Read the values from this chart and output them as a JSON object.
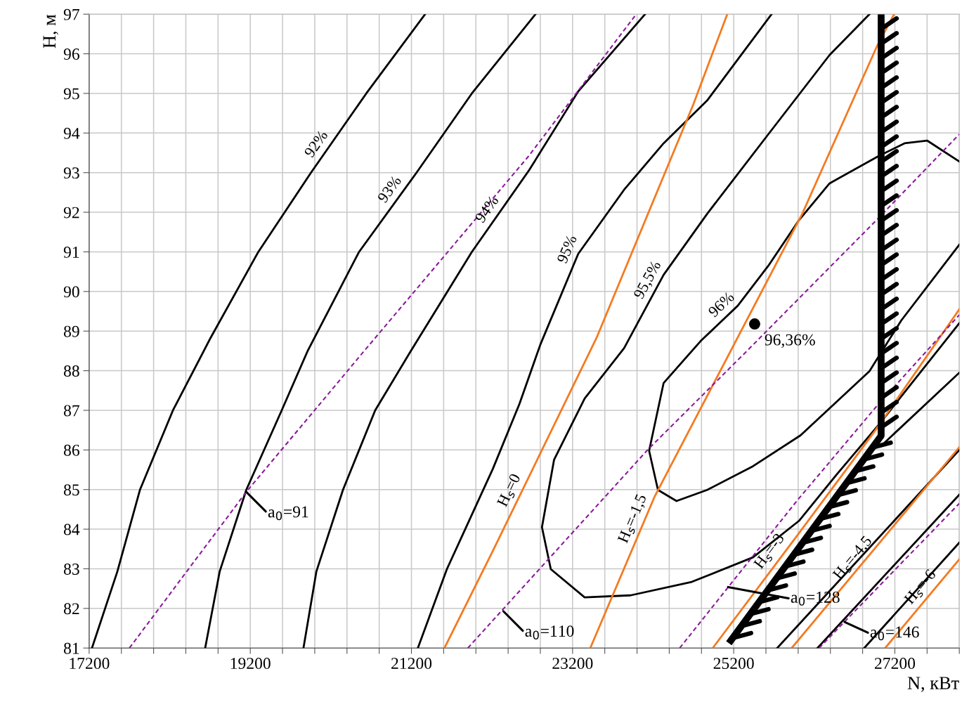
{
  "chart_data": {
    "type": "line",
    "xlabel": "N, кВт",
    "ylabel": "Н, м",
    "xlim": [
      17200,
      28000
    ],
    "ylim": [
      81,
      97
    ],
    "xticks": [
      17200,
      {
        "value": 17600,
        "label": null
      },
      {
        "value": 18000,
        "label": null
      },
      {
        "value": 18400,
        "label": null
      },
      {
        "value": 18800,
        "label": null
      },
      19200,
      {
        "value": 19600,
        "label": null
      },
      {
        "value": 20000,
        "label": null
      },
      {
        "value": 20400,
        "label": null
      },
      {
        "value": 20800,
        "label": null
      },
      21200,
      {
        "value": 21600,
        "label": null
      },
      {
        "value": 22000,
        "label": null
      },
      {
        "value": 22400,
        "label": null
      },
      {
        "value": 22800,
        "label": null
      },
      23200,
      {
        "value": 23600,
        "label": null
      },
      {
        "value": 24000,
        "label": null
      },
      {
        "value": 24400,
        "label": null
      },
      {
        "value": 24800,
        "label": null
      },
      25200,
      {
        "value": 25600,
        "label": null
      },
      {
        "value": 26000,
        "label": null
      },
      {
        "value": 26400,
        "label": null
      },
      {
        "value": 26800,
        "label": null
      },
      27200,
      {
        "value": 27600,
        "label": null
      },
      {
        "value": 28000,
        "label": null
      }
    ],
    "yticks": [
      81,
      82,
      83,
      84,
      85,
      86,
      87,
      88,
      89,
      90,
      91,
      92,
      93,
      94,
      95,
      96,
      97
    ],
    "grid": true,
    "series": [
      {
        "color": "#000000",
        "x": [
          17235,
          17550,
          17830,
          18240,
          18710,
          19300,
          19950,
          20640,
          21370
        ],
        "values": [
          81.0,
          82.93,
          84.99,
          87.0,
          88.84,
          91.0,
          92.99,
          95.0,
          97.0
        ]
      },
      {
        "color": "#000000",
        "x": [
          18640,
          18820,
          19150,
          19590,
          19910,
          20550,
          21260,
          21950,
          22740
        ],
        "values": [
          81.0,
          82.93,
          84.99,
          87.0,
          88.49,
          91.0,
          92.99,
          95.0,
          97.0
        ]
      },
      {
        "color": "#000000",
        "x": [
          19860,
          20020,
          20350,
          20750,
          21190,
          21950,
          22660,
          23270,
          24100
        ],
        "values": [
          81.0,
          82.93,
          84.99,
          87.0,
          88.49,
          91.0,
          93.06,
          95.05,
          97.0
        ]
      },
      {
        "color": "#000000",
        "x": [
          21280,
          21640,
          22210,
          22540,
          22800,
          23270,
          23840,
          24330,
          24870,
          25670
        ],
        "values": [
          81.0,
          82.99,
          85.52,
          87.16,
          88.66,
          90.95,
          92.57,
          93.74,
          94.82,
          97.0
        ]
      },
      {
        "color": "#000000",
        "x": [
          26885,
          26390,
          25630,
          24870,
          24330,
          23840,
          23350,
          22970,
          22820,
          22930,
          23350,
          23920,
          24680,
          25440,
          26010,
          26470,
          27030,
          28000
        ],
        "values": [
          97.0,
          95.97,
          93.97,
          91.96,
          90.42,
          88.57,
          87.3,
          85.75,
          84.05,
          82.99,
          82.28,
          82.33,
          82.67,
          83.29,
          84.21,
          85.36,
          86.71,
          89.2
        ]
      },
      {
        "color": "#000000",
        "x": [
          28000,
          27600,
          27320,
          27000,
          26390,
          26010,
          25630,
          25250,
          24790,
          24330,
          24150,
          24260,
          24490,
          24870,
          25440,
          26030,
          26885,
          27280,
          28000
        ],
        "values": [
          93.28,
          93.81,
          93.74,
          93.42,
          92.73,
          91.8,
          90.65,
          89.64,
          88.75,
          87.69,
          85.98,
          84.99,
          84.71,
          84.99,
          85.59,
          86.37,
          87.99,
          89.27,
          91.18
        ]
      },
      {
        "color": "#000000",
        "x": [
          25740,
          28000
        ],
        "values": [
          81.0,
          86.0
        ]
      },
      {
        "color": "#000000",
        "x": [
          27070,
          28000
        ],
        "values": [
          86.18,
          87.95
        ]
      },
      {
        "color": "#000000",
        "x": [
          26240,
          28000
        ],
        "values": [
          81.0,
          84.87
        ]
      },
      {
        "color": "#000000",
        "x": [
          26820,
          28000
        ],
        "values": [
          81.0,
          83.66
        ]
      },
      {
        "color": "#f47a20",
        "x": [
          21610,
          22210,
          23500,
          24700,
          25120
        ],
        "values": [
          81.0,
          83.45,
          88.84,
          94.73,
          97.0
        ]
      },
      {
        "color": "#f47a20",
        "x": [
          23420,
          24220,
          25250,
          26050,
          26980,
          27190
        ],
        "values": [
          81.0,
          84.83,
          88.84,
          91.96,
          96.2,
          97.0
        ]
      },
      {
        "color": "#f47a20",
        "x": [
          24940,
          25970,
          26960,
          28000
        ],
        "values": [
          81.0,
          83.79,
          86.5,
          89.55
        ]
      },
      {
        "color": "#f47a20",
        "x": [
          25920,
          28000
        ],
        "values": [
          81.0,
          86.07
        ]
      },
      {
        "color": "#f47a20",
        "x": [
          27080,
          28000
        ],
        "values": [
          81.0,
          83.24
        ]
      },
      {
        "color": "#8b1a9b",
        "line_style": "dashed",
        "x": [
          17700,
          19150,
          20610,
          22660,
          23990
        ],
        "values": [
          81.0,
          84.94,
          88.49,
          93.43,
          97.0
        ]
      },
      {
        "color": "#8b1a9b",
        "line_style": "dashed",
        "x": [
          21900,
          24130,
          25360,
          27000,
          28000
        ],
        "values": [
          81.0,
          86.0,
          88.49,
          91.86,
          93.97
        ]
      },
      {
        "color": "#8b1a9b",
        "line_style": "dashed",
        "x": [
          24530,
          25990,
          26960,
          28000
        ],
        "values": [
          81.0,
          84.73,
          87.07,
          89.41
        ]
      },
      {
        "color": "#8b1a9b",
        "line_style": "dashed",
        "x": [
          26260,
          28000
        ],
        "values": [
          81.0,
          84.65
        ]
      },
      {
        "color": "#000000",
        "x": [
          27030,
          27030,
          25140
        ],
        "values": [
          97.0,
          86.36,
          81.12
        ]
      },
      {
        "type": "scatter",
        "color": "#000000",
        "x": [
          25460
        ],
        "values": [
          89.18
        ]
      }
    ],
    "annotations": [
      {
        "text": "92%",
        "x": 20140,
        "y": 93.55
      },
      {
        "text": "93%",
        "x": 21050,
        "y": 92.4
      },
      {
        "text": "94%",
        "x": 22260,
        "y": 91.9
      },
      {
        "text": "95%",
        "x": 23270,
        "y": 90.95
      },
      {
        "text": "95,5%",
        "x": 24260,
        "y": 90.15
      },
      {
        "text": "96%",
        "x": 25150,
        "y": 89.45
      },
      {
        "text": "H$_{s}$=0",
        "x": 22545,
        "y": 84.85
      },
      {
        "text": "H$_{s}$=-1,5",
        "x": 24080,
        "y": 84.15
      },
      {
        "text": "H$_{s}$=-3",
        "x": 25770,
        "y": 83.25
      },
      {
        "text": "H$_{s}$=-4,5",
        "x": 26780,
        "y": 83.1
      },
      {
        "text": "H$_{s}$=-6",
        "x": 27630,
        "y": 82.35
      },
      {
        "text": "a$_{0}$=91",
        "x": 19150,
        "y": 84.94
      },
      {
        "text": "a$_{0}$=110",
        "x": 22340,
        "y": 81.93
      },
      {
        "text": "a$_{0}$=128",
        "x": 25130,
        "y": 82.54
      },
      {
        "text": "a$_{0}$=146",
        "x": 26575,
        "y": 81.66
      },
      {
        "text": "96,36%",
        "x": 25460,
        "y": 89.18
      }
    ]
  }
}
